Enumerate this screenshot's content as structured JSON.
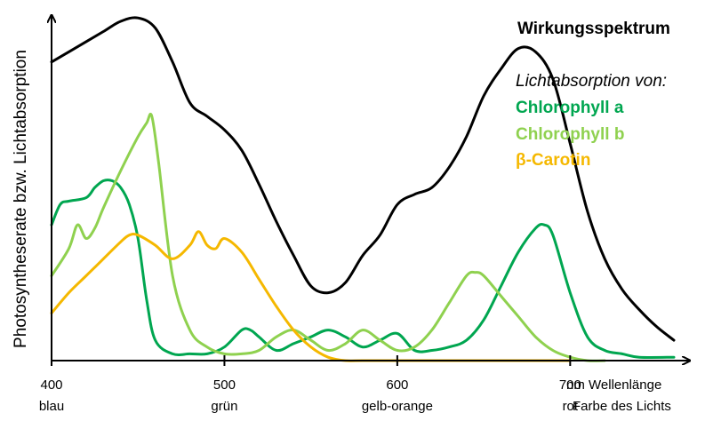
{
  "chart_data": {
    "type": "line",
    "title": "Wirkungsspektrum",
    "legend_heading": "Lichtabsorption von:",
    "ylabel": "Photosyntheserate bzw. Lichtabsorption",
    "xlabel": "nm Wellenlänge",
    "color_axis_label": "Farbe des Lichts",
    "xlim": [
      400,
      760
    ],
    "ylim": [
      0,
      100
    ],
    "x_ticks": [
      {
        "value": 400,
        "label": "400",
        "color_label": "blau"
      },
      {
        "value": 500,
        "label": "500",
        "color_label": "grün"
      },
      {
        "value": 600,
        "label": "600",
        "color_label": "gelb-orange"
      },
      {
        "value": 700,
        "label": "700",
        "color_label": "rot"
      }
    ],
    "series": [
      {
        "name": "Wirkungsspektrum",
        "color": "#000000",
        "in_legend": false,
        "x": [
          400,
          410,
          420,
          430,
          440,
          450,
          460,
          470,
          480,
          490,
          500,
          510,
          520,
          530,
          540,
          550,
          560,
          570,
          580,
          590,
          600,
          610,
          620,
          630,
          640,
          650,
          660,
          670,
          680,
          690,
          700,
          710,
          720,
          730,
          740,
          750,
          760
        ],
        "y": [
          88,
          91,
          94,
          97,
          100,
          101,
          98,
          88,
          76,
          72,
          68,
          62,
          52,
          41,
          31,
          22,
          20,
          23,
          31,
          37,
          46,
          49,
          51,
          57,
          66,
          78,
          86,
          92,
          91,
          83,
          64,
          44,
          30,
          21,
          15,
          10,
          6
        ]
      },
      {
        "name": "Chlorophyll a",
        "color": "#00A650",
        "in_legend": true,
        "x": [
          400,
          405,
          410,
          420,
          425,
          430,
          435,
          440,
          445,
          450,
          455,
          460,
          470,
          480,
          490,
          500,
          510,
          515,
          520,
          530,
          540,
          550,
          560,
          570,
          580,
          590,
          600,
          610,
          620,
          630,
          640,
          650,
          660,
          670,
          680,
          685,
          690,
          700,
          710,
          720,
          730,
          740,
          760
        ],
        "y": [
          40,
          46,
          47,
          48,
          51,
          53,
          53,
          51,
          46,
          36,
          18,
          6,
          2,
          2,
          2,
          4,
          9,
          9,
          7,
          3,
          5,
          7,
          9,
          7,
          4,
          6,
          8,
          3,
          3,
          4,
          6,
          12,
          22,
          32,
          39,
          40,
          37,
          20,
          7,
          3,
          2,
          1,
          1
        ]
      },
      {
        "name": "Chlorophyll b",
        "color": "#8FD14F",
        "in_legend": true,
        "x": [
          400,
          410,
          415,
          420,
          425,
          430,
          440,
          450,
          455,
          458,
          462,
          470,
          480,
          490,
          500,
          510,
          520,
          530,
          540,
          550,
          560,
          570,
          580,
          590,
          600,
          610,
          620,
          630,
          640,
          645,
          650,
          660,
          670,
          680,
          690,
          700,
          710,
          720
        ],
        "y": [
          25,
          33,
          40,
          36,
          39,
          45,
          56,
          66,
          70,
          72,
          58,
          25,
          9,
          4,
          2,
          2,
          3,
          7,
          9,
          6,
          3,
          5,
          9,
          6,
          3,
          4,
          9,
          17,
          25,
          26,
          25,
          19,
          13,
          7,
          3,
          1,
          0,
          0
        ]
      },
      {
        "name": "β-Carotin",
        "color": "#F5B800",
        "in_legend": true,
        "x": [
          400,
          410,
          420,
          430,
          440,
          445,
          450,
          460,
          470,
          480,
          485,
          490,
          495,
          500,
          510,
          520,
          530,
          540,
          550,
          560,
          570,
          580,
          600,
          620,
          640,
          660,
          680,
          700
        ],
        "y": [
          14,
          20,
          25,
          30,
          35,
          37,
          37,
          34,
          30,
          34,
          38,
          34,
          33,
          36,
          32,
          24,
          16,
          9,
          4,
          1,
          0,
          0,
          0,
          0,
          0,
          0,
          0,
          0
        ]
      }
    ]
  }
}
